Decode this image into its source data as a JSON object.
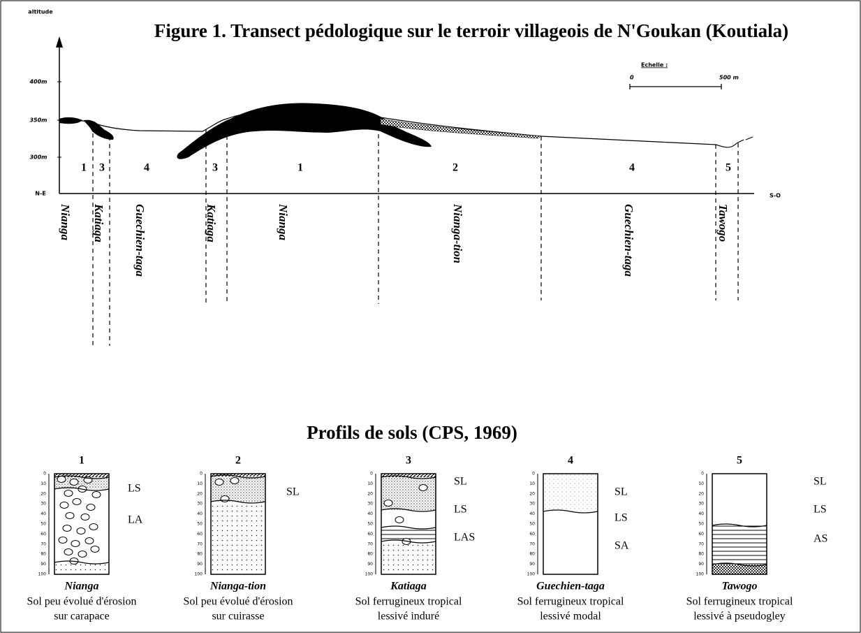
{
  "header": {
    "title": "Figure 1. Transect pédologique sur le terroir villageois de N'Goukan (Koutiala)"
  },
  "transect": {
    "axis_label": "altitude",
    "altitude_ticks": [
      "400m",
      "350m",
      "300m"
    ],
    "left_end": "N-E",
    "right_end": "S-O",
    "scale": {
      "label": "Echelle :",
      "start": "0",
      "end": "500 m"
    },
    "zones": [
      {
        "number": "1",
        "name": "Nianga"
      },
      {
        "number": "3",
        "name": "Katiaga"
      },
      {
        "number": "4",
        "name": "Guechien-taga"
      },
      {
        "number": "3",
        "name": "Katiaga"
      },
      {
        "number": "1",
        "name": "Nianga"
      },
      {
        "number": "2",
        "name": "Nianga-tion"
      },
      {
        "number": "4",
        "name": "Guechien-taga"
      },
      {
        "number": "5",
        "name": "Tawogo"
      }
    ]
  },
  "profiles_title": "Profils de sols (CPS, 1969)",
  "depth_ticks": [
    "0",
    "10",
    "20",
    "30",
    "40",
    "50",
    "60",
    "70",
    "80",
    "90",
    "100"
  ],
  "profiles": [
    {
      "number": "1",
      "horizons": [
        "LS",
        "LA"
      ],
      "name": "Nianga",
      "description": [
        "Sol peu évolué d'érosion",
        "sur carapace"
      ]
    },
    {
      "number": "2",
      "horizons": [
        "SL"
      ],
      "name": "Nianga-tion",
      "description": [
        "Sol peu évolué d'érosion",
        "sur cuirasse"
      ]
    },
    {
      "number": "3",
      "horizons": [
        "SL",
        "LS",
        "LAS"
      ],
      "name": "Katiaga",
      "description": [
        "Sol ferrugineux tropical",
        "lessivé induré"
      ]
    },
    {
      "number": "4",
      "horizons": [
        "SL",
        "LS",
        "SA"
      ],
      "name": "Guechien-taga",
      "description": [
        "Sol ferrugineux tropical",
        "lessivé modal"
      ]
    },
    {
      "number": "5",
      "horizons": [
        "SL",
        "LS",
        "AS"
      ],
      "name": "Tawogo",
      "description": [
        "Sol ferrugineux tropical",
        "lessivé à pseudogley"
      ]
    }
  ]
}
